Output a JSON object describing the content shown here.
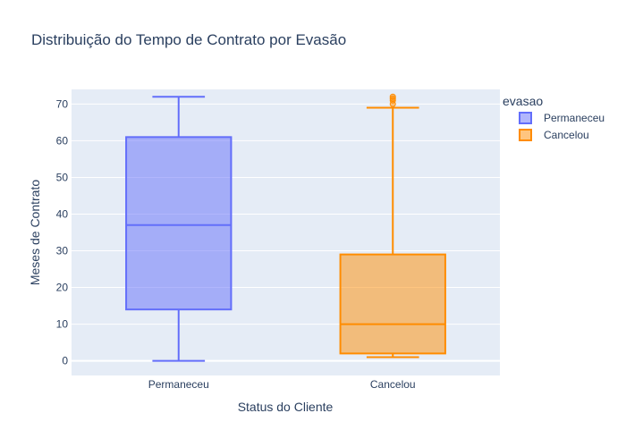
{
  "chart_data": {
    "type": "box",
    "title": "Distribuição do Tempo de Contrato por Evasão",
    "xlabel": "Status do Cliente",
    "ylabel": "Meses de Contrato",
    "categories": [
      "Permaneceu",
      "Cancelou"
    ],
    "ylim": [
      -4,
      74
    ],
    "yticks": [
      0,
      10,
      20,
      30,
      40,
      50,
      60,
      70
    ],
    "grid": true,
    "legend": {
      "title": "evasao",
      "placement": "top-right",
      "entries": [
        "Permaneceu",
        "Cancelou"
      ]
    },
    "series": [
      {
        "name": "Permaneceu",
        "category": "Permaneceu",
        "color": "#636efa",
        "min": 0,
        "q1": 14,
        "median": 37,
        "q3": 61,
        "max": 72,
        "outliers": []
      },
      {
        "name": "Cancelou",
        "category": "Cancelou",
        "color": "#ff8c00",
        "min": 1,
        "q1": 2,
        "median": 10,
        "q3": 29,
        "max": 69,
        "outliers": [
          70,
          71,
          71.5,
          72
        ]
      }
    ]
  }
}
